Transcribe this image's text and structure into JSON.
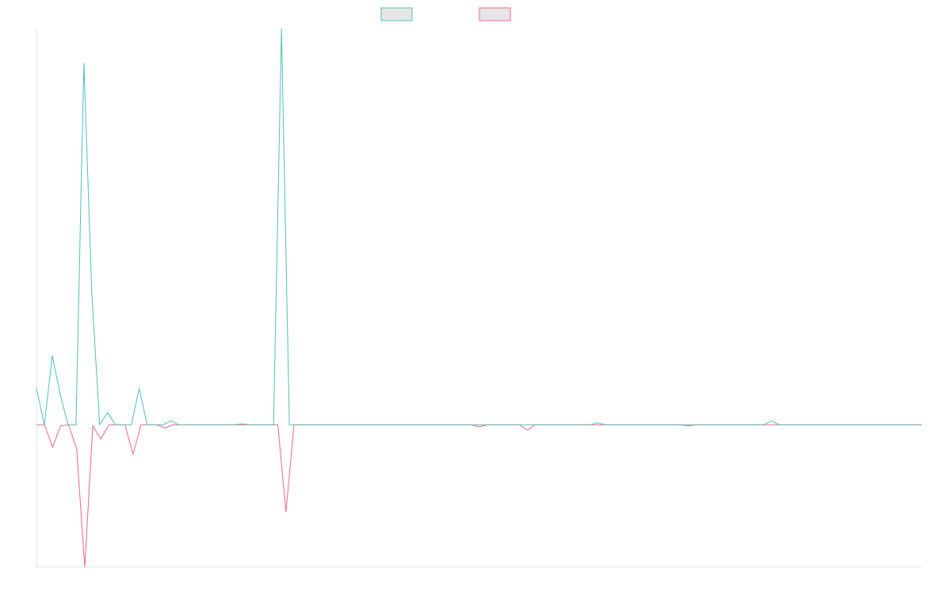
{
  "chart_data": {
    "type": "line",
    "title": "",
    "xlabel": "",
    "ylabel": "",
    "grid": false,
    "legend_position": "top-center",
    "ylim": [
      -7,
      19.5
    ],
    "series": [
      {
        "color": "#4bc0c0",
        "legend_fill": "#e6e6e6",
        "values": [
          1.8,
          0,
          3.4,
          1.5,
          0,
          0,
          17.8,
          6.5,
          0,
          0.6,
          0,
          0,
          0,
          1.8,
          0,
          0,
          0,
          0.2,
          0,
          0,
          0,
          0,
          0,
          0,
          0,
          0,
          0.05,
          0,
          0,
          0,
          0,
          19.5,
          0,
          0,
          0,
          0,
          0,
          0,
          0,
          0,
          0,
          0,
          0,
          0,
          0,
          0,
          0,
          0,
          0,
          0,
          0,
          0,
          0,
          0,
          0,
          0,
          0,
          0,
          0,
          0,
          0,
          0,
          0,
          0,
          0,
          0,
          0,
          0,
          0,
          0,
          0,
          0.1,
          0,
          0,
          0,
          0,
          0,
          0,
          0,
          0,
          0,
          0,
          0,
          0,
          0,
          0,
          0,
          0,
          0,
          0,
          0,
          0,
          0,
          0.2,
          0,
          0,
          0,
          0,
          0,
          0,
          0,
          0,
          0,
          0,
          0,
          0,
          0,
          0,
          0,
          0,
          0,
          0,
          0
        ]
      },
      {
        "color": "#ff6384",
        "legend_fill": "#e6e6e6",
        "values": [
          0,
          0,
          -1.1,
          -0.05,
          0,
          -1.2,
          -7,
          -0.05,
          -0.7,
          0,
          0,
          0,
          -1.45,
          0,
          0,
          0,
          -0.15,
          0,
          0,
          0,
          0,
          0,
          0,
          0,
          0,
          0,
          0,
          0,
          0,
          0,
          0,
          -4.3,
          0,
          0,
          0,
          0,
          0,
          0,
          0,
          0,
          0,
          0,
          0,
          0,
          0,
          0,
          0,
          0,
          0,
          0,
          0,
          0,
          0,
          0,
          0,
          -0.1,
          0,
          0,
          0,
          0,
          0,
          -0.25,
          0,
          0,
          0,
          0,
          0,
          0,
          0,
          0,
          0,
          0,
          0,
          0,
          0,
          0,
          0,
          0,
          0,
          0,
          0,
          -0.05,
          0,
          0,
          0,
          0,
          0,
          0,
          0,
          0,
          0,
          0,
          0,
          0,
          0,
          0,
          0,
          0,
          0,
          0,
          0,
          0,
          0,
          0,
          0,
          0,
          0,
          0,
          0,
          0,
          0
        ]
      }
    ]
  }
}
